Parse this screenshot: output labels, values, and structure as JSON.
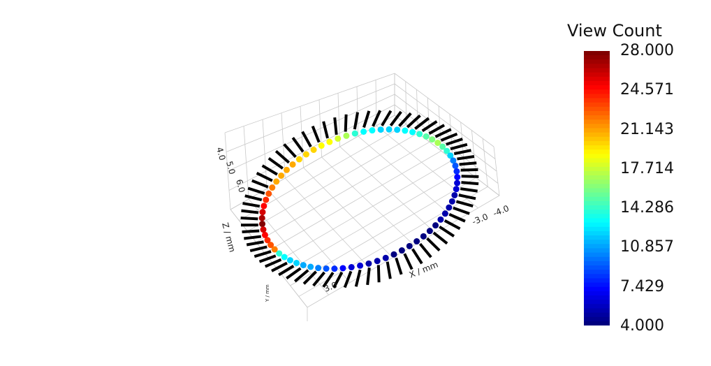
{
  "chart_data": {
    "type": "scatter",
    "title": "",
    "colorbar": {
      "title": "View Count",
      "min": 4.0,
      "max": 28.0,
      "ticks": [
        "28.000",
        "24.571",
        "21.143",
        "17.714",
        "14.286",
        "10.857",
        "7.429",
        "4.000"
      ],
      "colormap": "jet"
    },
    "axes": {
      "xlabel": "X / mm",
      "ylabel": "Y / mm",
      "zlabel": "Z / mm",
      "x_ticks": [
        "3.0",
        "-3.0",
        "-4.0"
      ],
      "z_ticks": [
        "4.0",
        "5.0",
        "6.0"
      ],
      "grid": true
    },
    "points_description": "camera positions arranged in a ring, colored by view count",
    "view_counts": [
      28,
      27,
      26,
      25,
      24,
      23,
      22,
      21,
      21,
      21,
      21,
      20,
      20,
      20,
      19,
      19,
      18,
      17,
      14,
      13,
      13,
      12,
      12,
      12,
      13,
      13,
      14,
      15,
      16,
      17,
      15,
      14,
      12,
      10,
      9,
      8,
      7,
      6,
      6,
      5,
      5,
      5,
      5,
      5,
      4,
      4,
      4,
      4,
      4,
      4,
      4,
      5,
      5,
      5,
      6,
      6,
      7,
      8,
      9,
      10,
      11,
      11,
      12,
      12,
      13,
      14,
      22,
      23,
      24,
      25,
      26
    ]
  }
}
